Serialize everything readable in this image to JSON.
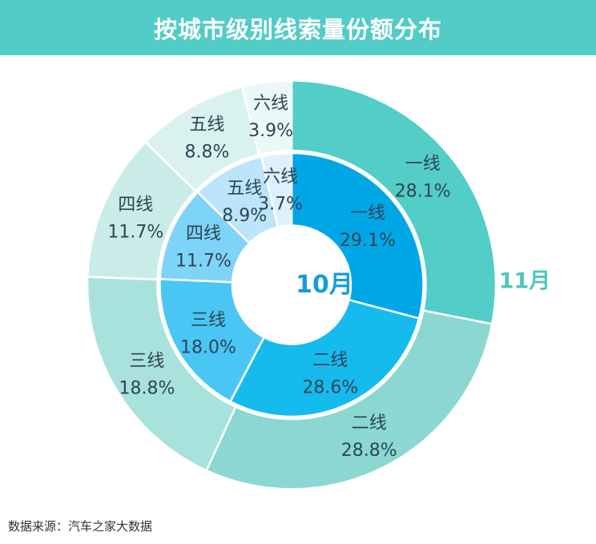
{
  "header": {
    "title": "按城市级别线索量份额分布"
  },
  "footer": {
    "source": "数据来源：汽车之家大数据"
  },
  "colors": {
    "header_bg": "#52CCC7",
    "header_text": "#FFFFFF",
    "center_label_color": "#189CD9",
    "outer_series_label_color": "#4EC6C0",
    "segment_label_color": "#2F4455",
    "source_text_color": "#333333",
    "slice_stroke": "#FFFFFF"
  },
  "chart_data": {
    "type": "pie",
    "subtype": "nested-donut",
    "title": "按城市级别线索量份额分布",
    "unit": "%",
    "start": "12-oclock-clockwise",
    "legend_position": "none",
    "categories": [
      "一线",
      "二线",
      "三线",
      "四线",
      "五线",
      "六线"
    ],
    "series": [
      {
        "name": "10月",
        "ring": "inner",
        "values": [
          29.1,
          28.6,
          18.0,
          11.7,
          8.9,
          3.7
        ],
        "labels": [
          "29.1%",
          "28.6%",
          "18.0%",
          "11.7%",
          "8.9%",
          "3.7%"
        ],
        "colors": [
          "#00A7E7",
          "#16BBEE",
          "#49C6F3",
          "#7ED4F6",
          "#BCE4FA",
          "#DDF1FC"
        ]
      },
      {
        "name": "11月",
        "ring": "outer",
        "values": [
          28.1,
          28.8,
          18.8,
          11.7,
          8.8,
          3.9
        ],
        "labels": [
          "28.1%",
          "28.8%",
          "18.8%",
          "11.7%",
          "8.8%",
          "3.9%"
        ],
        "colors": [
          "#52CDC7",
          "#8BD8D2",
          "#A9E2DC",
          "#C9ECE8",
          "#DAF2EF",
          "#EAF9F7"
        ]
      }
    ]
  }
}
